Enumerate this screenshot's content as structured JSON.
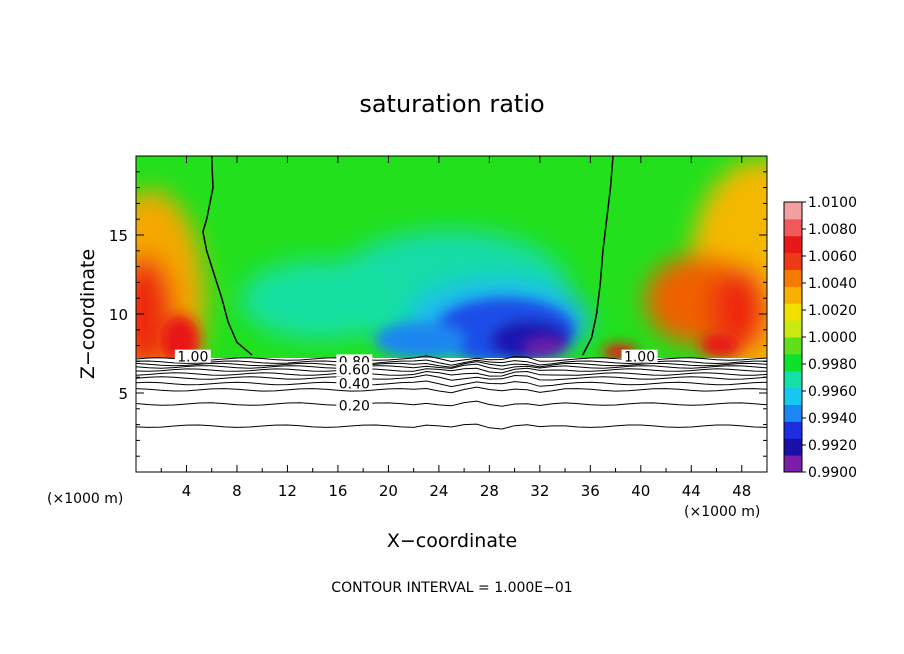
{
  "chart_data": {
    "type": "heatmap",
    "title": "saturation ratio",
    "xlabel": "X−coordinate",
    "ylabel": "Z−coordinate",
    "x_unit_left": "(×1000 m)",
    "x_unit_right": "(×1000 m)",
    "footer": "CONTOUR INTERVAL = 1.000E−01",
    "xlim": [
      0,
      50
    ],
    "ylim": [
      0,
      20
    ],
    "x_ticks": [
      4,
      8,
      12,
      16,
      20,
      24,
      28,
      32,
      36,
      40,
      44,
      48
    ],
    "y_ticks": [
      5,
      10,
      15
    ],
    "colorbar": {
      "labels": [
        "1.0100",
        "1.0080",
        "1.0060",
        "1.0040",
        "1.0020",
        "1.0000",
        "0.9980",
        "0.9960",
        "0.9940",
        "0.9920",
        "0.9900"
      ],
      "range": [
        0.99,
        1.01
      ],
      "colors": [
        "#7a1ea8",
        "#1a10a8",
        "#1c2ee0",
        "#1d86f5",
        "#19c8f0",
        "#14e0a8",
        "#0ce22a",
        "#60e01a",
        "#c8ea10",
        "#f2e000",
        "#f5b000",
        "#f47a00",
        "#ee3a14",
        "#e81818",
        "#f05a5a",
        "#f4a0a0"
      ]
    },
    "contour_labels": [
      {
        "text": "1.00",
        "x": 4.5,
        "z": 7.3
      },
      {
        "text": "1.00",
        "x": 39.9,
        "z": 7.3
      },
      {
        "text": "0.80",
        "x": 17.3,
        "z": 7.0
      },
      {
        "text": "0.60",
        "x": 17.3,
        "z": 6.5
      },
      {
        "text": "0.40",
        "x": 17.3,
        "z": 5.6
      },
      {
        "text": "0.20",
        "x": 17.3,
        "z": 4.2
      }
    ],
    "contour_levels_z": [
      7.15,
      6.95,
      6.8,
      6.65,
      6.45,
      6.2,
      5.95,
      5.6,
      5.2,
      4.3,
      2.9
    ],
    "boundary_1.00": {
      "left": [
        [
          6.0,
          20
        ],
        [
          6.1,
          18
        ],
        [
          5.6,
          16
        ],
        [
          5.3,
          15.2
        ],
        [
          5.6,
          14
        ],
        [
          6.2,
          12.5
        ],
        [
          6.8,
          11
        ],
        [
          7.3,
          9.5
        ],
        [
          8.0,
          8.2
        ],
        [
          9.2,
          7.4
        ]
      ],
      "right": [
        [
          37.8,
          20
        ],
        [
          37.6,
          18
        ],
        [
          37.3,
          16
        ],
        [
          37.0,
          14
        ],
        [
          36.8,
          12
        ],
        [
          36.5,
          10
        ],
        [
          36.1,
          8.5
        ],
        [
          35.4,
          7.4
        ]
      ]
    }
  }
}
